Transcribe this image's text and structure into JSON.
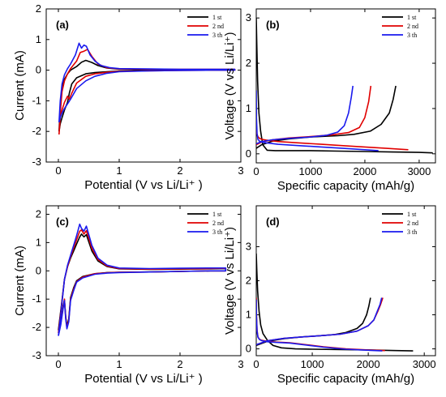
{
  "chart_data": [
    {
      "panel": "(a)",
      "type": "line",
      "xlabel": "Potential (V vs Li/Li⁺ )",
      "ylabel": "Current (mA)",
      "xlim": [
        -0.2,
        3.0
      ],
      "ylim": [
        -3,
        2
      ],
      "xticks": [
        "0",
        "1",
        "2",
        "3"
      ],
      "yticks": [
        "-3",
        "-2",
        "-1",
        "0",
        "1",
        "2"
      ],
      "legend_position": "top-right",
      "series": [
        {
          "name": "1 st",
          "color": "#000000",
          "x": [
            0.01,
            0.03,
            0.06,
            0.1,
            0.15,
            0.2,
            0.3,
            0.38,
            0.45,
            0.55,
            0.65,
            0.8,
            1.0,
            1.5,
            2.0,
            2.5,
            2.9,
            2.9,
            2.5,
            2.0,
            1.5,
            1.2,
            1.0,
            0.8,
            0.6,
            0.45,
            0.3,
            0.22,
            0.18,
            0.15,
            0.1,
            0.06,
            0.03,
            0.01
          ],
          "y": [
            -2.0,
            -1.2,
            -0.6,
            -0.3,
            -0.12,
            0.0,
            0.12,
            0.26,
            0.32,
            0.25,
            0.15,
            0.07,
            0.03,
            0.02,
            0.02,
            0.02,
            0.02,
            0.0,
            0.0,
            0.0,
            0.0,
            -0.02,
            -0.03,
            -0.05,
            -0.08,
            -0.12,
            -0.25,
            -0.45,
            -0.75,
            -1.05,
            -1.3,
            -1.55,
            -1.75,
            -2.0
          ]
        },
        {
          "name": "2 nd",
          "color": "#e00000",
          "x": [
            0.01,
            0.03,
            0.06,
            0.1,
            0.15,
            0.2,
            0.3,
            0.36,
            0.42,
            0.48,
            0.55,
            0.65,
            0.8,
            1.0,
            1.5,
            2.0,
            2.5,
            2.9,
            2.9,
            2.5,
            2.0,
            1.5,
            1.0,
            0.8,
            0.6,
            0.45,
            0.3,
            0.22,
            0.18,
            0.15,
            0.1,
            0.06,
            0.03,
            0.01
          ],
          "y": [
            -2.1,
            -1.4,
            -0.7,
            -0.35,
            -0.12,
            0.05,
            0.3,
            0.58,
            0.62,
            0.68,
            0.45,
            0.2,
            0.08,
            0.04,
            0.03,
            0.03,
            0.03,
            0.03,
            0.0,
            0.0,
            -0.01,
            -0.02,
            -0.04,
            -0.07,
            -0.12,
            -0.2,
            -0.42,
            -0.75,
            -0.95,
            -0.85,
            -1.05,
            -1.3,
            -1.55,
            -2.1
          ]
        },
        {
          "name": "3 th",
          "color": "#1a1aee",
          "x": [
            0.01,
            0.03,
            0.06,
            0.1,
            0.15,
            0.2,
            0.28,
            0.34,
            0.38,
            0.42,
            0.46,
            0.52,
            0.6,
            0.7,
            0.85,
            1.0,
            1.5,
            2.0,
            2.5,
            2.9,
            2.9,
            2.5,
            2.0,
            1.5,
            1.0,
            0.8,
            0.6,
            0.45,
            0.3,
            0.2,
            0.15,
            0.1,
            0.06,
            0.03,
            0.01
          ],
          "y": [
            -1.7,
            -1.0,
            -0.45,
            -0.15,
            0.05,
            0.2,
            0.5,
            0.88,
            0.72,
            0.82,
            0.78,
            0.5,
            0.3,
            0.15,
            0.08,
            0.05,
            0.04,
            0.03,
            0.03,
            0.03,
            0.0,
            0.0,
            -0.01,
            -0.02,
            -0.05,
            -0.1,
            -0.2,
            -0.35,
            -0.6,
            -0.95,
            -1.1,
            -1.25,
            -1.4,
            -1.55,
            -1.7
          ]
        }
      ]
    },
    {
      "panel": "(b)",
      "type": "line",
      "xlabel": "Specific capacity (mAh/g)",
      "ylabel": "Voltage (V vs Li/Li⁺)",
      "xlim": [
        0,
        3300
      ],
      "ylim": [
        -0.2,
        3.2
      ],
      "xticks": [
        "0",
        "1000",
        "2000",
        "3000"
      ],
      "yticks": [
        "0",
        "1",
        "2",
        "3"
      ],
      "legend_position": "top-right",
      "series": [
        {
          "name": "1 st",
          "color": "#000000",
          "x": [
            0,
            10,
            25,
            50,
            80,
            120,
            200,
            350,
            600,
            1000,
            1500,
            2000,
            2500,
            3000,
            3250,
            null,
            0,
            100,
            300,
            600,
            1000,
            1500,
            1800,
            2100,
            2300,
            2450,
            2520,
            2570
          ],
          "y": [
            3.0,
            2.4,
            1.6,
            0.9,
            0.5,
            0.2,
            0.08,
            0.07,
            0.07,
            0.07,
            0.06,
            0.05,
            0.04,
            0.03,
            0.02,
            null,
            0.12,
            0.2,
            0.28,
            0.33,
            0.37,
            0.4,
            0.43,
            0.5,
            0.65,
            0.9,
            1.2,
            1.5
          ]
        },
        {
          "name": "2 nd",
          "color": "#e00000",
          "x": [
            0,
            10,
            30,
            60,
            100,
            200,
            400,
            800,
            1200,
            1600,
            2000,
            2400,
            2800,
            null,
            0,
            100,
            300,
            600,
            1000,
            1400,
            1700,
            1900,
            2000,
            2070,
            2110
          ],
          "y": [
            0.55,
            0.45,
            0.38,
            0.34,
            0.32,
            0.3,
            0.27,
            0.24,
            0.21,
            0.18,
            0.15,
            0.12,
            0.09,
            null,
            0.2,
            0.26,
            0.31,
            0.35,
            0.38,
            0.42,
            0.47,
            0.58,
            0.8,
            1.15,
            1.5
          ]
        },
        {
          "name": "3 th",
          "color": "#1a1aee",
          "x": [
            0,
            5,
            15,
            30,
            60,
            100,
            200,
            400,
            800,
            1200,
            1600,
            2000,
            2250,
            null,
            0,
            100,
            300,
            600,
            1000,
            1300,
            1500,
            1620,
            1700,
            1750,
            1780
          ],
          "y": [
            1.4,
            0.8,
            0.45,
            0.32,
            0.28,
            0.26,
            0.24,
            0.21,
            0.18,
            0.15,
            0.12,
            0.09,
            0.07,
            null,
            0.22,
            0.27,
            0.31,
            0.34,
            0.37,
            0.41,
            0.48,
            0.62,
            0.9,
            1.25,
            1.5
          ]
        }
      ]
    },
    {
      "panel": "(c)",
      "type": "line",
      "xlabel": "Potential (V vs Li/Li⁺ )",
      "ylabel": "Current (mA)",
      "xlim": [
        -0.2,
        3.0
      ],
      "ylim": [
        -3,
        2.3
      ],
      "xticks": [
        "0",
        "1",
        "2",
        "3"
      ],
      "yticks": [
        "-3",
        "-2",
        "-1",
        "0",
        "1",
        "2"
      ],
      "legend_position": "top-right",
      "series": [
        {
          "name": "1 st",
          "color": "#000000",
          "x": [
            0.0,
            0.05,
            0.1,
            0.15,
            0.2,
            0.25,
            0.3,
            0.35,
            0.38,
            0.42,
            0.46,
            0.55,
            0.65,
            0.8,
            1.0,
            1.5,
            2.0,
            2.5,
            2.75,
            2.75,
            2.5,
            2.0,
            1.5,
            1.0,
            0.8,
            0.6,
            0.4,
            0.3,
            0.25,
            0.2,
            0.17,
            0.14,
            0.12,
            0.1,
            0.08,
            0.06,
            0.04,
            0.0
          ],
          "y": [
            -2.1,
            -1.2,
            -0.3,
            0.15,
            0.45,
            0.7,
            0.95,
            1.2,
            1.3,
            1.2,
            1.28,
            0.7,
            0.35,
            0.15,
            0.07,
            0.05,
            0.06,
            0.07,
            0.08,
            0.0,
            0.0,
            -0.02,
            -0.04,
            -0.05,
            -0.06,
            -0.1,
            -0.2,
            -0.35,
            -0.6,
            -0.95,
            -1.7,
            -1.95,
            -1.6,
            -1.05,
            -1.2,
            -1.5,
            -1.8,
            -2.1
          ]
        },
        {
          "name": "2 nd",
          "color": "#e00000",
          "x": [
            0.0,
            0.05,
            0.1,
            0.15,
            0.2,
            0.25,
            0.3,
            0.35,
            0.38,
            0.42,
            0.46,
            0.55,
            0.65,
            0.8,
            1.0,
            1.5,
            2.0,
            2.5,
            2.75,
            2.75,
            2.5,
            2.0,
            1.5,
            1.0,
            0.8,
            0.6,
            0.4,
            0.3,
            0.25,
            0.2,
            0.17,
            0.14,
            0.12,
            0.1,
            0.08,
            0.06,
            0.04,
            0.0
          ],
          "y": [
            -2.2,
            -1.25,
            -0.3,
            0.15,
            0.5,
            0.8,
            1.1,
            1.4,
            1.45,
            1.3,
            1.42,
            0.8,
            0.4,
            0.17,
            0.08,
            0.06,
            0.07,
            0.08,
            0.09,
            0.0,
            0.0,
            -0.02,
            -0.04,
            -0.05,
            -0.07,
            -0.1,
            -0.22,
            -0.38,
            -0.65,
            -1.0,
            -1.75,
            -2.0,
            -1.65,
            -1.0,
            -1.25,
            -1.55,
            -1.85,
            -2.2
          ]
        },
        {
          "name": "3 th",
          "color": "#1a1aee",
          "x": [
            0.0,
            0.05,
            0.1,
            0.15,
            0.2,
            0.25,
            0.3,
            0.35,
            0.38,
            0.42,
            0.46,
            0.55,
            0.65,
            0.8,
            1.0,
            1.5,
            2.0,
            2.5,
            2.75,
            2.75,
            2.5,
            2.0,
            1.5,
            1.0,
            0.8,
            0.6,
            0.4,
            0.3,
            0.25,
            0.2,
            0.17,
            0.14,
            0.12,
            0.1,
            0.08,
            0.06,
            0.04,
            0.0
          ],
          "y": [
            -2.3,
            -1.3,
            -0.3,
            0.2,
            0.55,
            0.9,
            1.25,
            1.65,
            1.5,
            1.4,
            1.58,
            0.9,
            0.45,
            0.2,
            0.1,
            0.08,
            0.09,
            0.1,
            0.1,
            0.0,
            0.0,
            -0.02,
            -0.04,
            -0.06,
            -0.08,
            -0.12,
            -0.25,
            -0.4,
            -0.7,
            -1.05,
            -1.8,
            -2.05,
            -1.7,
            -1.05,
            -1.3,
            -1.6,
            -1.9,
            -2.3
          ]
        }
      ]
    },
    {
      "panel": "(d)",
      "type": "line",
      "xlabel": "Specific capacity (mAh/g)",
      "ylabel": "Voltage (V vs Li/Li⁺)",
      "xlim": [
        0,
        3200
      ],
      "ylim": [
        -0.2,
        4.2
      ],
      "xticks": [
        "0",
        "1000",
        "2000",
        "3000"
      ],
      "yticks": [
        "0",
        "1",
        "2",
        "3"
      ],
      "legend_position": "top-right",
      "series": [
        {
          "name": "1 st",
          "color": "#000000",
          "x": [
            0,
            10,
            25,
            50,
            80,
            120,
            200,
            300,
            450,
            700,
            1000,
            1500,
            2000,
            2500,
            2800,
            null,
            0,
            200,
            500,
            800,
            1100,
            1400,
            1600,
            1800,
            1900,
            1970,
            2010,
            2040
          ],
          "y": [
            2.8,
            2.3,
            1.7,
            1.1,
            0.7,
            0.45,
            0.25,
            0.1,
            0.03,
            0.0,
            -0.01,
            -0.02,
            -0.03,
            -0.05,
            -0.06,
            null,
            0.1,
            0.22,
            0.3,
            0.35,
            0.38,
            0.42,
            0.48,
            0.6,
            0.75,
            1.0,
            1.25,
            1.5
          ]
        },
        {
          "name": "2 nd",
          "color": "#e00000",
          "x": [
            0,
            5,
            15,
            30,
            60,
            100,
            200,
            350,
            600,
            900,
            1200,
            1600,
            2000,
            2300,
            null,
            0,
            200,
            500,
            800,
            1100,
            1500,
            1800,
            2000,
            2100,
            2170,
            2220,
            2260
          ],
          "y": [
            1.5,
            1.0,
            0.55,
            0.35,
            0.28,
            0.25,
            0.22,
            0.2,
            0.18,
            0.12,
            0.06,
            0.0,
            -0.03,
            -0.05,
            null,
            0.12,
            0.24,
            0.31,
            0.35,
            0.38,
            0.43,
            0.52,
            0.68,
            0.85,
            1.1,
            1.3,
            1.5
          ]
        },
        {
          "name": "3 th",
          "color": "#1a1aee",
          "x": [
            0,
            5,
            15,
            30,
            60,
            100,
            200,
            350,
            600,
            900,
            1200,
            1600,
            2000,
            2250,
            null,
            0,
            200,
            500,
            800,
            1100,
            1500,
            1800,
            2000,
            2100,
            2160,
            2210,
            2240
          ],
          "y": [
            1.45,
            0.95,
            0.52,
            0.34,
            0.27,
            0.24,
            0.21,
            0.19,
            0.17,
            0.11,
            0.05,
            -0.01,
            -0.04,
            -0.06,
            null,
            0.12,
            0.24,
            0.31,
            0.35,
            0.38,
            0.43,
            0.52,
            0.68,
            0.85,
            1.1,
            1.3,
            1.5
          ]
        }
      ]
    }
  ]
}
